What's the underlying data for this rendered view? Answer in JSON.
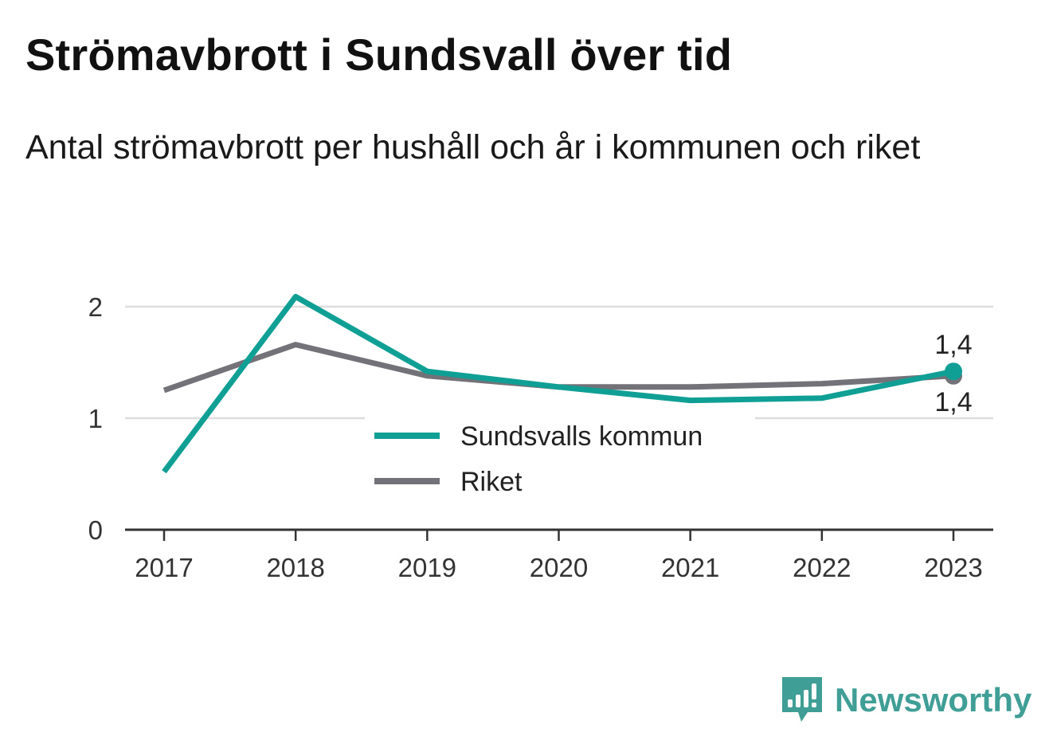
{
  "header": {
    "title": "Strömavbrott i Sundsvall över tid",
    "subtitle": "Antal strömavbrott per hushåll och år i kommunen och riket"
  },
  "brand": {
    "name": "Newsworthy",
    "color": "#3f9e95"
  },
  "chart_data": {
    "type": "line",
    "x": [
      "2017",
      "2018",
      "2019",
      "2020",
      "2021",
      "2022",
      "2023"
    ],
    "series": [
      {
        "name": "Sundsvalls kommun",
        "color": "#0f9f95",
        "values": [
          0.52,
          2.09,
          1.42,
          1.28,
          1.16,
          1.18,
          1.42
        ],
        "end_label": "1,4"
      },
      {
        "name": "Riket",
        "color": "#737278",
        "values": [
          1.25,
          1.66,
          1.38,
          1.28,
          1.28,
          1.31,
          1.38
        ],
        "end_label": "1,4"
      }
    ],
    "y_ticks": [
      {
        "value": 0,
        "label": "0"
      },
      {
        "value": 1,
        "label": "1"
      },
      {
        "value": 2,
        "label": "2"
      }
    ],
    "ylim": [
      0,
      2.2
    ],
    "grid": true,
    "legend_placement": "center"
  }
}
